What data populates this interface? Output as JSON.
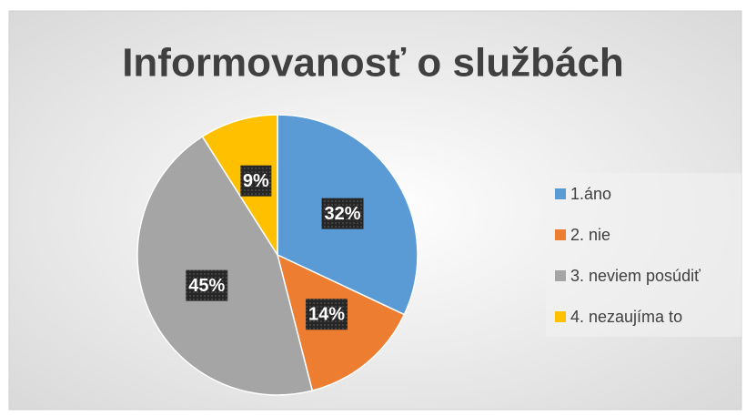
{
  "chart_data": {
    "type": "pie",
    "title": "Informovanosť o službách",
    "categories": [
      "1.áno",
      "2. nie",
      "3. neviem posúdiť",
      "4. nezaujíma to"
    ],
    "values": [
      32,
      14,
      45,
      9
    ],
    "value_labels": [
      "32%",
      "14%",
      "45%",
      "9%"
    ],
    "colors": [
      "#5b9bd5",
      "#ed7d31",
      "#a5a5a5",
      "#ffc000"
    ],
    "legend": "right"
  }
}
